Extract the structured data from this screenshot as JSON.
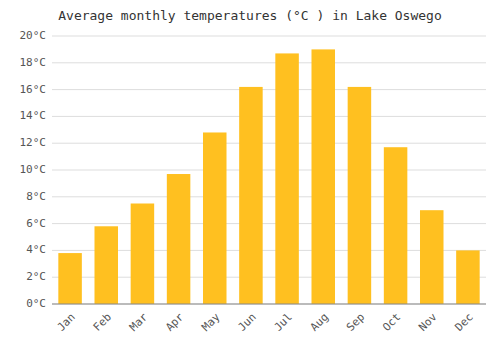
{
  "chart_data": {
    "type": "bar",
    "title": "Average monthly temperatures (°C ) in Lake Oswego",
    "categories": [
      "Jan",
      "Feb",
      "Mar",
      "Apr",
      "May",
      "Jun",
      "Jul",
      "Aug",
      "Sep",
      "Oct",
      "Nov",
      "Dec"
    ],
    "values": [
      3.8,
      5.8,
      7.5,
      9.7,
      12.8,
      16.2,
      18.7,
      19.0,
      16.2,
      11.7,
      7.0,
      4.0
    ],
    "color": "#FFC020",
    "ylim": [
      0,
      20
    ],
    "yticks": [
      {
        "value": 0,
        "label": "0°C"
      },
      {
        "value": 2,
        "label": "2°C"
      },
      {
        "value": 4,
        "label": "4°C"
      },
      {
        "value": 6,
        "label": "6°C"
      },
      {
        "value": 8,
        "label": "8°C"
      },
      {
        "value": 10,
        "label": "10°C"
      },
      {
        "value": 12,
        "label": "12°C"
      },
      {
        "value": 14,
        "label": "14°C"
      },
      {
        "value": 16,
        "label": "16°C"
      },
      {
        "value": 18,
        "label": "18°C"
      },
      {
        "value": 20,
        "label": "20°C"
      }
    ],
    "grid": true
  }
}
